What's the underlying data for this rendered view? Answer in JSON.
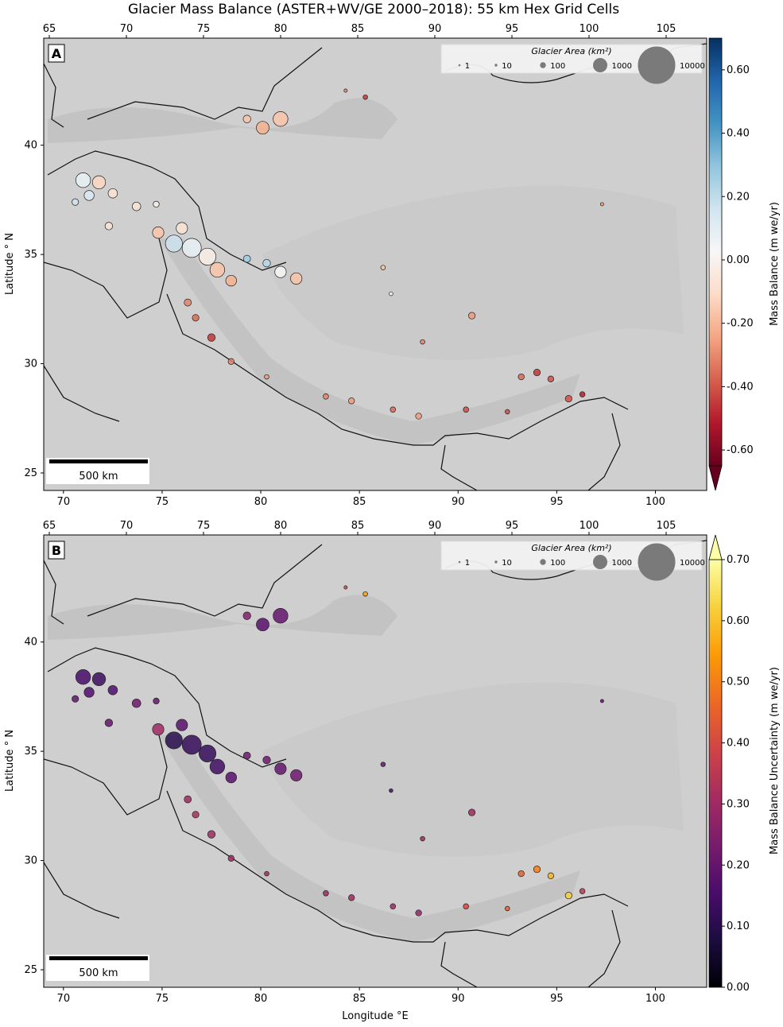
{
  "title": "Glacier Mass Balance (ASTER+WV/GE 2000–2018): 55 km Hex Grid Cells",
  "axes": {
    "bottom_ticks": [
      "70",
      "75",
      "80",
      "85",
      "90",
      "95",
      "100"
    ],
    "top_ticks": [
      "65",
      "70",
      "75",
      "80",
      "85",
      "90",
      "95",
      "100",
      "105"
    ],
    "left_ticks": [
      "25",
      "30",
      "35",
      "40"
    ],
    "xlabel": "Longitude$^\\circ$E",
    "ylabel": "Latitude$^\\circ$N",
    "xlabel_text": "Longitude °E",
    "ylabel_text": "Latitude ° N"
  },
  "panels": [
    {
      "id": "A",
      "label": "A",
      "colorbar": {
        "label": "Mass Balance (m we/yr)",
        "ticks": [
          "0.60",
          "0.40",
          "0.20",
          "0.00",
          "-0.20",
          "-0.40",
          "-0.60"
        ],
        "tick_values": [
          0.6,
          0.4,
          0.2,
          0.0,
          -0.2,
          -0.4,
          -0.6
        ],
        "range": [
          -0.7,
          0.7
        ],
        "extend": "min",
        "colormap": [
          "#67001f",
          "#b2182b",
          "#d6604d",
          "#f4a582",
          "#fddbc7",
          "#f7f7f7",
          "#d1e5f0",
          "#92c5de",
          "#4393c3",
          "#2166ac",
          "#053061"
        ]
      },
      "scale_bar": "500 km"
    },
    {
      "id": "B",
      "label": "B",
      "colorbar": {
        "label": "Mass Balance Uncertainty (m we/yr)",
        "ticks": [
          "0.70",
          "0.60",
          "0.50",
          "0.40",
          "0.30",
          "0.20",
          "0.10",
          "0.00"
        ],
        "tick_values": [
          0.7,
          0.6,
          0.5,
          0.4,
          0.3,
          0.2,
          0.1,
          0.0
        ],
        "range": [
          0,
          0.7
        ],
        "extend": "max",
        "colormap": [
          "#000004",
          "#1b0c41",
          "#4a0c6b",
          "#781c6d",
          "#a52c60",
          "#cf4446",
          "#ed6925",
          "#fb9b06",
          "#f7d13d",
          "#fcffa4"
        ]
      },
      "scale_bar": "500 km"
    }
  ],
  "legend": {
    "title": "Glacier Area (km²)",
    "entries": [
      "1",
      "10",
      "100",
      "1000",
      "10000"
    ]
  },
  "map_data": {
    "lon_range": [
      69,
      102.6
    ],
    "lat_range": [
      24.2,
      44.9
    ],
    "glacier_cells": [
      {
        "lon": 71,
        "lat": 38.4,
        "area": 1500,
        "mb": 0.05,
        "unc": 0.15
      },
      {
        "lon": 71.8,
        "lat": 38.3,
        "area": 1200,
        "mb": -0.15,
        "unc": 0.13
      },
      {
        "lon": 72.5,
        "lat": 37.8,
        "area": 600,
        "mb": -0.1,
        "unc": 0.16
      },
      {
        "lon": 71.3,
        "lat": 37.7,
        "area": 700,
        "mb": 0.1,
        "unc": 0.16
      },
      {
        "lon": 70.6,
        "lat": 37.4,
        "area": 300,
        "mb": 0.15,
        "unc": 0.2
      },
      {
        "lon": 73.7,
        "lat": 37.2,
        "area": 500,
        "mb": -0.1,
        "unc": 0.22
      },
      {
        "lon": 74.7,
        "lat": 37.3,
        "area": 250,
        "mb": -0.05,
        "unc": 0.2
      },
      {
        "lon": 72.3,
        "lat": 36.3,
        "area": 400,
        "mb": -0.1,
        "unc": 0.2
      },
      {
        "lon": 75.6,
        "lat": 35.5,
        "area": 2000,
        "mb": 0.15,
        "unc": 0.1
      },
      {
        "lon": 76.5,
        "lat": 35.3,
        "area": 2500,
        "mb": 0.05,
        "unc": 0.12
      },
      {
        "lon": 77.3,
        "lat": 34.9,
        "area": 2000,
        "mb": -0.05,
        "unc": 0.12
      },
      {
        "lon": 76.0,
        "lat": 36.2,
        "area": 900,
        "mb": -0.1,
        "unc": 0.18
      },
      {
        "lon": 74.8,
        "lat": 36.0,
        "area": 900,
        "mb": -0.2,
        "unc": 0.3
      },
      {
        "lon": 77.8,
        "lat": 34.3,
        "area": 1500,
        "mb": -0.2,
        "unc": 0.14
      },
      {
        "lon": 78.5,
        "lat": 33.8,
        "area": 800,
        "mb": -0.25,
        "unc": 0.18
      },
      {
        "lon": 81.0,
        "lat": 34.2,
        "area": 900,
        "mb": 0.0,
        "unc": 0.2
      },
      {
        "lon": 81.8,
        "lat": 33.9,
        "area": 900,
        "mb": -0.2,
        "unc": 0.22
      },
      {
        "lon": 80.3,
        "lat": 34.6,
        "area": 400,
        "mb": 0.2,
        "unc": 0.22
      },
      {
        "lon": 79.3,
        "lat": 34.8,
        "area": 350,
        "mb": 0.25,
        "unc": 0.22
      },
      {
        "lon": 81.0,
        "lat": 41.2,
        "area": 1500,
        "mb": -0.2,
        "unc": 0.2
      },
      {
        "lon": 80.1,
        "lat": 40.8,
        "area": 1100,
        "mb": -0.25,
        "unc": 0.18
      },
      {
        "lon": 79.3,
        "lat": 41.2,
        "area": 400,
        "mb": -0.2,
        "unc": 0.25
      },
      {
        "lon": 85.3,
        "lat": 42.2,
        "area": 150,
        "mb": -0.5,
        "unc": 0.55
      },
      {
        "lon": 84.3,
        "lat": 42.5,
        "area": 80,
        "mb": -0.35,
        "unc": 0.4
      },
      {
        "lon": 77.5,
        "lat": 31.2,
        "area": 400,
        "mb": -0.5,
        "unc": 0.3
      },
      {
        "lon": 76.7,
        "lat": 32.1,
        "area": 300,
        "mb": -0.4,
        "unc": 0.32
      },
      {
        "lon": 76.3,
        "lat": 32.8,
        "area": 350,
        "mb": -0.35,
        "unc": 0.3
      },
      {
        "lon": 78.5,
        "lat": 30.1,
        "area": 250,
        "mb": -0.35,
        "unc": 0.3
      },
      {
        "lon": 80.3,
        "lat": 29.4,
        "area": 150,
        "mb": -0.3,
        "unc": 0.3
      },
      {
        "lon": 83.3,
        "lat": 28.5,
        "area": 200,
        "mb": -0.35,
        "unc": 0.3
      },
      {
        "lon": 84.6,
        "lat": 28.3,
        "area": 250,
        "mb": -0.3,
        "unc": 0.3
      },
      {
        "lon": 86.7,
        "lat": 27.9,
        "area": 200,
        "mb": -0.4,
        "unc": 0.3
      },
      {
        "lon": 88.0,
        "lat": 27.6,
        "area": 250,
        "mb": -0.3,
        "unc": 0.28
      },
      {
        "lon": 90.4,
        "lat": 27.9,
        "area": 200,
        "mb": -0.45,
        "unc": 0.4
      },
      {
        "lon": 92.5,
        "lat": 27.8,
        "area": 150,
        "mb": -0.45,
        "unc": 0.45
      },
      {
        "lon": 90.7,
        "lat": 32.2,
        "area": 300,
        "mb": -0.3,
        "unc": 0.3
      },
      {
        "lon": 88.2,
        "lat": 31.0,
        "area": 150,
        "mb": -0.35,
        "unc": 0.3
      },
      {
        "lon": 93.2,
        "lat": 29.4,
        "area": 250,
        "mb": -0.4,
        "unc": 0.45
      },
      {
        "lon": 94.0,
        "lat": 29.6,
        "area": 300,
        "mb": -0.5,
        "unc": 0.5
      },
      {
        "lon": 94.7,
        "lat": 29.3,
        "area": 250,
        "mb": -0.45,
        "unc": 0.58
      },
      {
        "lon": 95.6,
        "lat": 28.4,
        "area": 300,
        "mb": -0.45,
        "unc": 0.62
      },
      {
        "lon": 96.3,
        "lat": 28.6,
        "area": 200,
        "mb": -0.55,
        "unc": 0.35
      },
      {
        "lon": 86.2,
        "lat": 34.4,
        "area": 150,
        "mb": -0.2,
        "unc": 0.2
      },
      {
        "lon": 86.6,
        "lat": 33.2,
        "area": 100,
        "mb": -0.05,
        "unc": 0.15
      },
      {
        "lon": 97.3,
        "lat": 37.3,
        "area": 80,
        "mb": -0.3,
        "unc": 0.2
      }
    ]
  }
}
